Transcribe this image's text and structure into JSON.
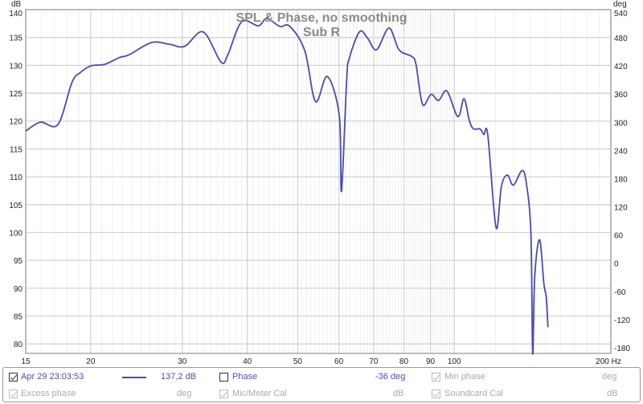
{
  "chart_data": {
    "type": "line",
    "title": "SPL & Phase, no smoothing",
    "subtitle": "Sub R",
    "xlabel_unit": "Hz",
    "ylabel_left": "dB",
    "ylabel_right": "deg",
    "xscale": "log",
    "xlim": [
      15,
      200
    ],
    "ylim": [
      78.3,
      140
    ],
    "ylim_right": [
      -192,
      540
    ],
    "grid": true,
    "x_ticks": [
      15,
      20,
      30,
      40,
      50,
      60,
      70,
      80,
      90,
      100,
      200
    ],
    "x_tick_labels": [
      "15",
      "20",
      "30",
      "40",
      "50",
      "60",
      "70",
      "80",
      "90",
      "100",
      "200 Hz"
    ],
    "y_ticks": [
      80,
      85,
      90,
      95,
      100,
      105,
      110,
      115,
      120,
      125,
      130,
      135,
      140
    ],
    "y_right_ticks": [
      -180,
      -120,
      -60,
      0,
      60,
      120,
      180,
      240,
      300,
      360,
      420,
      480,
      540
    ],
    "series": [
      {
        "name": "Apr 29 23:03:53",
        "color": "#4a4ab4",
        "x": [
          15.0,
          16.0,
          17.3,
          18.4,
          19.1,
          20.0,
          21.3,
          22.7,
          23.7,
          26.2,
          28.3,
          30.3,
          32.9,
          35.6,
          36.7,
          39.0,
          42.0,
          43.6,
          46.2,
          48.3,
          51.6,
          54.1,
          57.0,
          60.1,
          60.7,
          62.1,
          62.8,
          65.7,
          68.0,
          70.9,
          74.9,
          78.3,
          82.8,
          84.4,
          86.9,
          90.2,
          93.3,
          96.8,
          101.6,
          104.4,
          106.9,
          108.9,
          112.0,
          114.0,
          116.0,
          120.3,
          123.2,
          126.5,
          129.9,
          134.9,
          137.5,
          140.4,
          141.5,
          142.8,
          145.9,
          148.7,
          150.3,
          151.4
        ],
        "y": [
          118.2,
          119.8,
          119.4,
          126.9,
          128.7,
          129.9,
          130.2,
          131.4,
          131.9,
          134.1,
          133.8,
          133.4,
          136.0,
          130.6,
          131.9,
          137.8,
          137.1,
          138.4,
          137.0,
          137.0,
          132.6,
          123.5,
          128.0,
          121.0,
          107.4,
          127.3,
          131.2,
          136.0,
          135.0,
          132.8,
          136.7,
          132.8,
          131.6,
          130.2,
          123.0,
          124.8,
          123.7,
          125.4,
          120.8,
          124.0,
          120.1,
          118.6,
          118.6,
          117.6,
          117.5,
          100.9,
          108.3,
          110.3,
          108.5,
          111.1,
          109.0,
          99.9,
          78.3,
          92.2,
          98.7,
          90.8,
          88.3,
          83.0
        ]
      }
    ]
  },
  "legend": {
    "row1": {
      "measurement_label": "Apr 29 23:03:53",
      "measurement_checked": true,
      "spl_value": "137,2 dB",
      "phase_label": "Phase",
      "phase_checked": false,
      "phase_value": "-36 deg",
      "min_phase_label": "Min phase",
      "min_phase_unit": "deg"
    },
    "row2": {
      "excess_phase_label": "Excess phase",
      "excess_phase_unit": "deg",
      "mic_cal_label": "Mic/Meter Cal",
      "mic_cal_unit": "dB",
      "soundcard_cal_label": "Soundcard Cal",
      "soundcard_cal_unit": "dB"
    }
  }
}
